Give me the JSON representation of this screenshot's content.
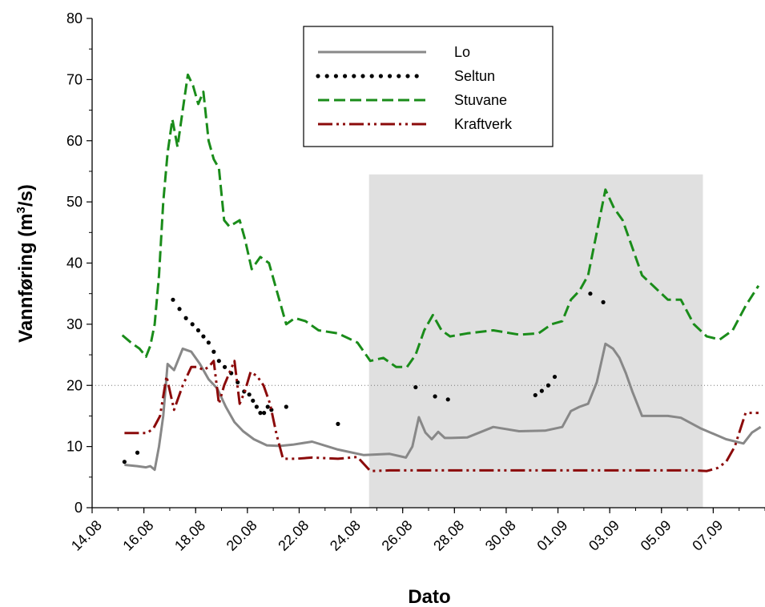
{
  "chart_data": {
    "type": "line",
    "title": "",
    "xlabel": "Dato",
    "ylabel_main": "Vannføring (m",
    "ylabel_sup": "3",
    "ylabel_tail": "/s)",
    "ylim": [
      0,
      80
    ],
    "yticks": [
      "0",
      "10",
      "20",
      "30",
      "40",
      "50",
      "60",
      "70",
      "80"
    ],
    "xlim": [
      "14.08",
      "09.09"
    ],
    "xticks": [
      "14.08",
      "16.08",
      "18.08",
      "20.08",
      "22.08",
      "24.08",
      "26.08",
      "28.08",
      "30.08",
      "01.09",
      "03.09",
      "05.09",
      "07.09"
    ],
    "reference_line": 20,
    "shaded_period": [
      "24.08",
      "06.09"
    ],
    "shaded_top": 54.5,
    "grid": false,
    "legend": "top-center",
    "series": [
      {
        "name": "Lo",
        "color": "#888888",
        "style": "solid",
        "x": [
          "15.08",
          "15.08",
          "16.08",
          "16.08",
          "16.08",
          "16.08",
          "16.08",
          "16.08",
          "17.08",
          "17.08",
          "17.08",
          "18.08",
          "18.08",
          "18.08",
          "19.08",
          "19.08",
          "19.08",
          "20.08",
          "20.08",
          "21.08",
          "21.08",
          "22.08",
          "23.08",
          "24.08",
          "25.08",
          "26.08",
          "26.08",
          "26.08",
          "26.08",
          "27.08",
          "27.08",
          "27.08",
          "27.08",
          "28.08",
          "29.08",
          "30.08",
          "31.08",
          "01.09",
          "01.09",
          "01.09",
          "02.09",
          "02.09",
          "02.09",
          "03.09",
          "03.09",
          "03.09",
          "03.09",
          "04.09",
          "04.09",
          "05.09",
          "05.09",
          "06.09",
          "07.09",
          "08.09",
          "08.09",
          "08.09"
        ],
        "y": [
          7,
          6.8,
          6.6,
          6.8,
          6.2,
          10,
          15,
          23.5,
          22.5,
          26,
          25.5,
          23.5,
          21,
          19.5,
          16.5,
          14,
          12.5,
          11.2,
          10.2,
          10.1,
          10.3,
          10.8,
          9.5,
          8.6,
          8.8,
          8.2,
          10,
          14.8,
          12.3,
          11.2,
          12.4,
          11.4,
          11.4,
          11.5,
          13.2,
          12.5,
          12.6,
          13.2,
          15.8,
          16.5,
          17,
          20.5,
          26.8,
          26,
          24.5,
          22,
          19,
          15,
          15,
          15,
          14.7,
          13,
          11.2,
          10.5,
          12.3,
          13.2
        ]
      },
      {
        "name": "Seltun",
        "color": "#000000",
        "style": "dotted",
        "x": [
          "15.08",
          "15.08",
          "17.08",
          "17.08",
          "17.08",
          "17.08",
          "18.08",
          "18.08",
          "18.08",
          "18.08",
          "18.08",
          "19.08",
          "19.08",
          "19.08",
          "19.08",
          "20.08",
          "20.08",
          "20.08",
          "20.08",
          "20.08",
          "20.08",
          "20.08",
          "21.08",
          "23.08",
          "26.08",
          "27.08",
          "27.08",
          "31.08",
          "31.08",
          "31.08",
          "31.08",
          "02.09",
          "02.09"
        ],
        "y": [
          7.5,
          9,
          34,
          32.5,
          31,
          30,
          29,
          28,
          27,
          25.5,
          24,
          23,
          22,
          20.5,
          19,
          18.5,
          17.5,
          16.5,
          15.5,
          15.5,
          16.5,
          16,
          16.5,
          13.7,
          19.7,
          18.2,
          17.7,
          18.4,
          19.1,
          20,
          21.4,
          35,
          33.6
        ]
      },
      {
        "name": "Stuvane",
        "color": "#1a8c1a",
        "style": "dashed",
        "x": [
          "15.08",
          "15.08",
          "15.08",
          "16.08",
          "16.08",
          "16.08",
          "16.08",
          "16.08",
          "16.08",
          "17.08",
          "17.08",
          "17.08",
          "17.08",
          "17.08",
          "18.08",
          "18.08",
          "18.08",
          "18.08",
          "18.08",
          "19.08",
          "19.08",
          "19.08",
          "19.08",
          "19.08",
          "20.08",
          "20.08",
          "20.08",
          "21.08",
          "21.08",
          "21.08",
          "22.08",
          "22.08",
          "23.08",
          "24.08",
          "24.08",
          "25.08",
          "25.08",
          "26.08",
          "26.08",
          "26.08",
          "27.08",
          "27.08",
          "27.08",
          "28.08",
          "29.08",
          "30.08",
          "31.08",
          "31.08",
          "01.09",
          "01.09",
          "01.09",
          "02.09",
          "02.09",
          "02.09",
          "03.09",
          "03.09",
          "03.09",
          "04.09",
          "04.09",
          "05.09",
          "05.09",
          "06.09",
          "06.09",
          "07.09",
          "07.09",
          "08.09",
          "08.09"
        ],
        "y": [
          28.2,
          27,
          26,
          24.7,
          26.5,
          30,
          38,
          50,
          58,
          63.5,
          59,
          65,
          70.8,
          69,
          66,
          68,
          60,
          57,
          55.5,
          47,
          46,
          46.5,
          47,
          44,
          39,
          41,
          40,
          35,
          30,
          31,
          30.5,
          29,
          28.5,
          27,
          24,
          24.5,
          23,
          23,
          25,
          29,
          31.5,
          29,
          28,
          28.5,
          29,
          28.3,
          28.5,
          30,
          30.5,
          34,
          35.5,
          38,
          45,
          52,
          49,
          47,
          43,
          38,
          36,
          34,
          34,
          30,
          28,
          27.5,
          29,
          33,
          36.3
        ]
      },
      {
        "name": "Kraftverk",
        "color": "#8b0a0a",
        "style": "dash-dot-dot",
        "x": [
          "15.08",
          "15.08",
          "16.08",
          "16.08",
          "16.08",
          "16.08",
          "17.08",
          "17.08",
          "17.08",
          "18.08",
          "18.08",
          "18.08",
          "18.08",
          "18.08",
          "19.08",
          "19.08",
          "19.08",
          "19.08",
          "19.08",
          "20.08",
          "20.08",
          "20.08",
          "20.08",
          "21.08",
          "21.08",
          "21.08",
          "21.08",
          "22.08",
          "23.08",
          "24.08",
          "24.08",
          "25.08",
          "26.08",
          "27.08",
          "28.08",
          "29.08",
          "30.08",
          "31.08",
          "01.09",
          "02.09",
          "03.09",
          "04.09",
          "05.09",
          "06.09",
          "06.09",
          "07.09",
          "07.09",
          "07.09",
          "08.09",
          "08.09"
        ],
        "y": [
          12.2,
          12.2,
          12.2,
          13,
          15,
          21.5,
          16,
          20,
          23,
          23,
          22.5,
          23,
          24,
          17,
          20,
          22,
          24,
          17,
          19,
          22.2,
          21.5,
          20,
          17,
          12,
          8,
          8,
          8,
          8.2,
          8,
          8.3,
          6,
          6.1,
          6.1,
          6.1,
          6.1,
          6.1,
          6.1,
          6.1,
          6.1,
          6.1,
          6.1,
          6.1,
          6.1,
          6.1,
          6,
          6.5,
          7.5,
          10,
          15.5,
          15.5
        ]
      }
    ]
  }
}
